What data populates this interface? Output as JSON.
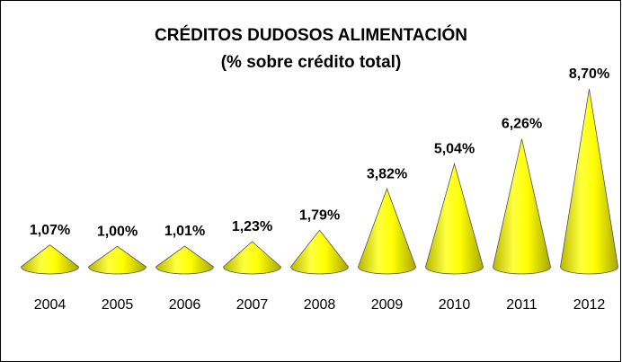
{
  "chart_data": {
    "type": "cone",
    "title": "CRÉDITOS DUDOSOS ALIMENTACIÓN",
    "subtitle": "(% sobre crédito total)",
    "categories": [
      "2004",
      "2005",
      "2006",
      "2007",
      "2008",
      "2009",
      "2010",
      "2011",
      "2012"
    ],
    "values": [
      1.07,
      1.0,
      1.01,
      1.23,
      1.79,
      3.82,
      5.04,
      6.26,
      8.7
    ],
    "value_labels": [
      "1,07%",
      "1,00%",
      "1,01%",
      "1,23%",
      "1,79%",
      "3,82%",
      "5,04%",
      "6,26%",
      "8,70%"
    ],
    "color": "#ffff00"
  }
}
